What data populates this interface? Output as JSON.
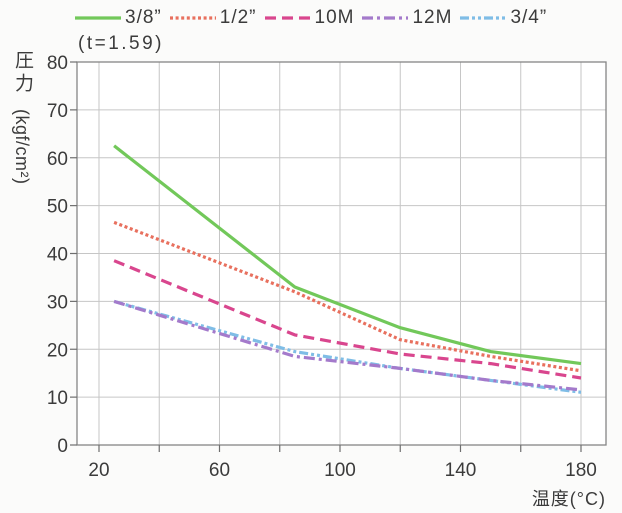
{
  "chart_data": {
    "type": "line",
    "note": "(t=1.59)",
    "ylabel": "圧力",
    "yunit": "(kgf/cm²)",
    "xlabel": "温度(°C)",
    "xlim": [
      12.7,
      188.3
    ],
    "ylim": [
      0,
      80
    ],
    "xticks": [
      20,
      60,
      100,
      140,
      180
    ],
    "x_gridlines": [
      20,
      40,
      60,
      80,
      100,
      120,
      140,
      160,
      180
    ],
    "yticks": [
      0,
      10,
      20,
      30,
      40,
      50,
      60,
      70,
      80
    ],
    "grid": true,
    "legend": "top",
    "x": [
      25,
      85,
      120,
      150,
      180
    ],
    "series": [
      {
        "name": "3/8”",
        "color": "#72c85a",
        "style": "solid",
        "values": [
          62.5,
          33,
          24.5,
          19.5,
          17
        ]
      },
      {
        "name": "1/2”",
        "color": "#e8705e",
        "style": "dotted",
        "values": [
          46.5,
          32,
          22,
          18.5,
          15.5
        ]
      },
      {
        "name": "10M",
        "color": "#d9468e",
        "style": "dashed",
        "values": [
          38.5,
          23,
          19,
          17,
          14
        ]
      },
      {
        "name": "12M",
        "color": "#a47acb",
        "style": "dash-dot",
        "values": [
          30,
          18.5,
          16,
          13.5,
          11.5
        ]
      },
      {
        "name": "3/4”",
        "color": "#7fbde6",
        "style": "dash-dot-dot",
        "values": [
          30,
          19.5,
          16,
          13.5,
          11
        ]
      }
    ]
  }
}
